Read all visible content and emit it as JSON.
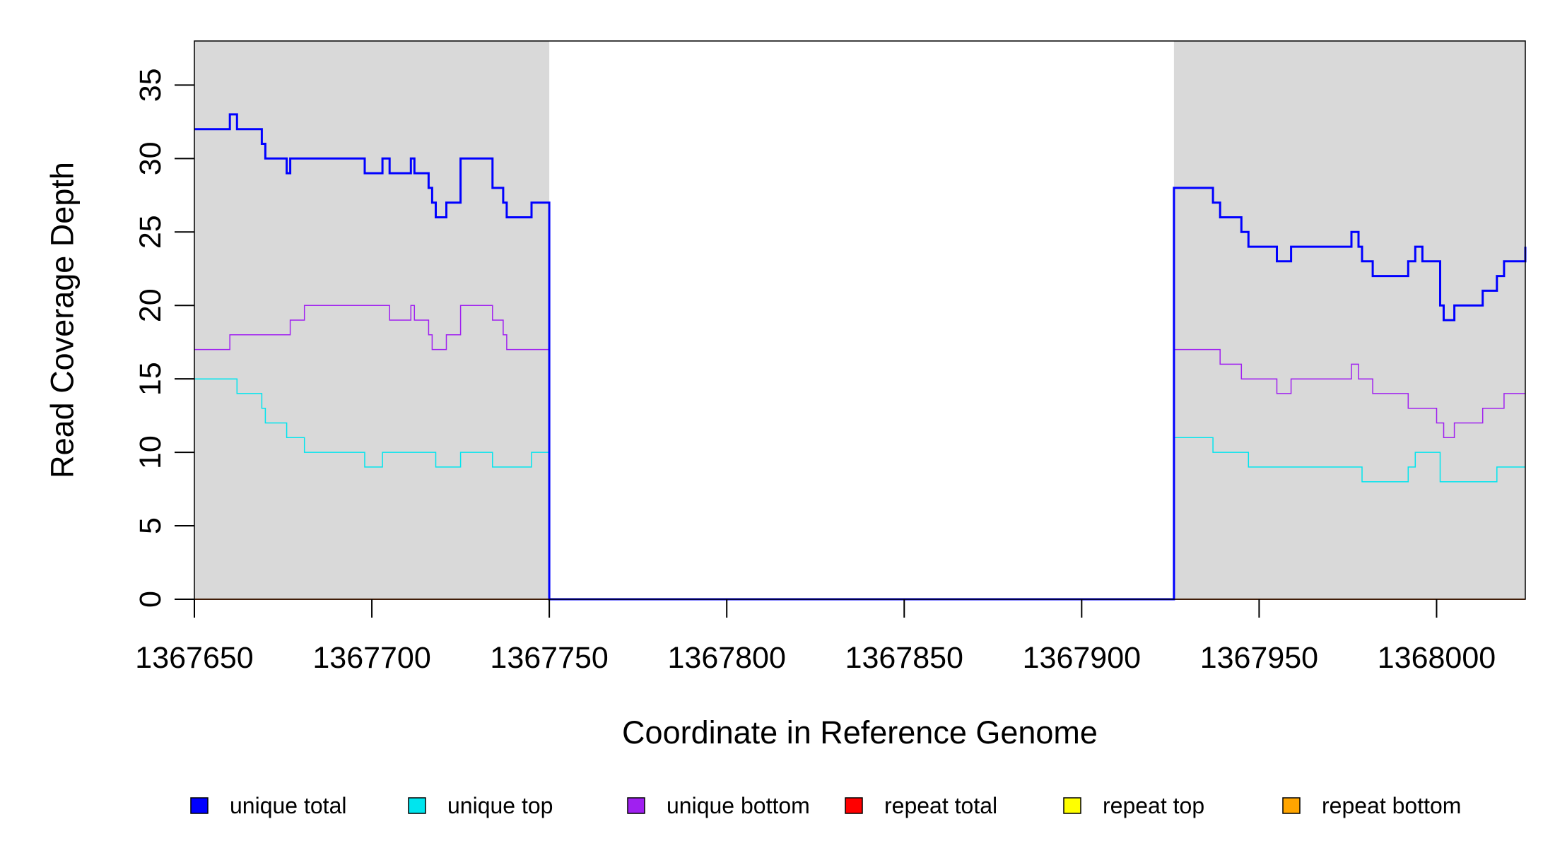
{
  "chart_data": {
    "type": "line",
    "title": "",
    "xlabel": "Coordinate in Reference Genome",
    "ylabel": "Read Coverage Depth",
    "xlim": [
      1367650,
      1368025
    ],
    "ylim": [
      0,
      38
    ],
    "x_ticks": [
      1367650,
      1367700,
      1367750,
      1367800,
      1367850,
      1367900,
      1367950,
      1368000
    ],
    "x_tick_labels": [
      "1367650",
      "1367700",
      "1367750",
      "1367800",
      "1367850",
      "1367900",
      "1367950",
      "1368000"
    ],
    "y_ticks": [
      0,
      5,
      10,
      15,
      20,
      25,
      30,
      35
    ],
    "y_tick_labels": [
      "0",
      "5",
      "10",
      "15",
      "20",
      "25",
      "30",
      "35"
    ],
    "grid": false,
    "legend_position": "bottom",
    "shaded_regions": [
      {
        "x0": 1367650,
        "x1": 1367750,
        "color": "#d9d9d9"
      },
      {
        "x0": 1367926,
        "x1": 1368025,
        "color": "#d9d9d9"
      }
    ],
    "series": [
      {
        "name": "unique total",
        "color": "#0000ff",
        "width": 3,
        "points": [
          [
            1367650,
            32
          ],
          [
            1367660,
            33
          ],
          [
            1367662,
            32
          ],
          [
            1367669,
            31
          ],
          [
            1367670,
            30
          ],
          [
            1367676,
            29
          ],
          [
            1367677,
            30
          ],
          [
            1367698,
            29
          ],
          [
            1367703,
            30
          ],
          [
            1367705,
            29
          ],
          [
            1367711,
            30
          ],
          [
            1367712,
            29
          ],
          [
            1367716,
            28
          ],
          [
            1367717,
            27
          ],
          [
            1367718,
            26
          ],
          [
            1367721,
            27
          ],
          [
            1367725,
            30
          ],
          [
            1367734,
            28
          ],
          [
            1367737,
            27
          ],
          [
            1367738,
            26
          ],
          [
            1367745,
            27
          ],
          [
            1367750,
            0
          ],
          [
            1367926,
            28
          ],
          [
            1367937,
            27
          ],
          [
            1367939,
            26
          ],
          [
            1367945,
            25
          ],
          [
            1367947,
            24
          ],
          [
            1367955,
            23
          ],
          [
            1367959,
            24
          ],
          [
            1367976,
            25
          ],
          [
            1367978,
            24
          ],
          [
            1367979,
            23
          ],
          [
            1367982,
            22
          ],
          [
            1367992,
            23
          ],
          [
            1367994,
            24
          ],
          [
            1367996,
            23
          ],
          [
            1368001,
            20
          ],
          [
            1368002,
            19
          ],
          [
            1368005,
            20
          ],
          [
            1368013,
            21
          ],
          [
            1368017,
            22
          ],
          [
            1368019,
            23
          ],
          [
            1368025,
            24
          ]
        ]
      },
      {
        "name": "unique top",
        "color": "#00e5ee",
        "width": 1.5,
        "points": [
          [
            1367650,
            15
          ],
          [
            1367662,
            14
          ],
          [
            1367669,
            13
          ],
          [
            1367670,
            12
          ],
          [
            1367676,
            11
          ],
          [
            1367681,
            10
          ],
          [
            1367698,
            9
          ],
          [
            1367703,
            10
          ],
          [
            1367718,
            9
          ],
          [
            1367725,
            10
          ],
          [
            1367734,
            9
          ],
          [
            1367745,
            10
          ],
          [
            1367750,
            0
          ],
          [
            1367926,
            11
          ],
          [
            1367937,
            10
          ],
          [
            1367947,
            9
          ],
          [
            1367979,
            8
          ],
          [
            1367992,
            9
          ],
          [
            1367994,
            10
          ],
          [
            1368001,
            8
          ],
          [
            1368017,
            9
          ],
          [
            1368025,
            9
          ]
        ]
      },
      {
        "name": "unique bottom",
        "color": "#a020f0",
        "width": 1.5,
        "points": [
          [
            1367650,
            17
          ],
          [
            1367660,
            18
          ],
          [
            1367677,
            19
          ],
          [
            1367681,
            20
          ],
          [
            1367705,
            19
          ],
          [
            1367711,
            20
          ],
          [
            1367712,
            19
          ],
          [
            1367716,
            18
          ],
          [
            1367717,
            17
          ],
          [
            1367721,
            18
          ],
          [
            1367725,
            20
          ],
          [
            1367734,
            19
          ],
          [
            1367737,
            18
          ],
          [
            1367738,
            17
          ],
          [
            1367750,
            0
          ],
          [
            1367926,
            17
          ],
          [
            1367939,
            16
          ],
          [
            1367945,
            15
          ],
          [
            1367955,
            14
          ],
          [
            1367959,
            15
          ],
          [
            1367976,
            16
          ],
          [
            1367978,
            15
          ],
          [
            1367982,
            14
          ],
          [
            1367992,
            13
          ],
          [
            1368000,
            12
          ],
          [
            1368002,
            11
          ],
          [
            1368005,
            12
          ],
          [
            1368013,
            13
          ],
          [
            1368019,
            14
          ],
          [
            1368025,
            14
          ]
        ]
      },
      {
        "name": "repeat total",
        "color": "#ff0000",
        "width": 1.5,
        "points": [
          [
            1367650,
            0
          ],
          [
            1368025,
            0
          ]
        ]
      },
      {
        "name": "repeat top",
        "color": "#ffff00",
        "width": 1.5,
        "points": [
          [
            1367650,
            0
          ],
          [
            1368025,
            0
          ]
        ]
      },
      {
        "name": "repeat bottom",
        "color": "#ffa500",
        "width": 1.5,
        "points": [
          [
            1367650,
            0
          ],
          [
            1368025,
            0
          ]
        ]
      }
    ]
  }
}
